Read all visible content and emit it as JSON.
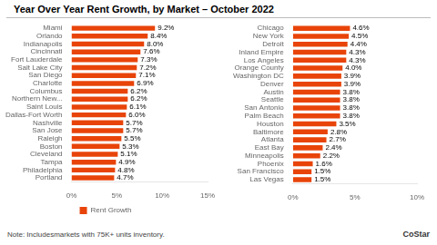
{
  "chart_data": [
    {
      "type": "bar",
      "orientation": "horizontal",
      "title": "Year Over Year Rent Growth, by Market –  October 2022",
      "annotations": [
        "Note: Includesmarkets with 75K+ units inventory.",
        "CoStar"
      ],
      "categories": [
        "Miami",
        "Orlando",
        "Indianapolis",
        "Cincinnati",
        "Fort Lauderdale",
        "Salt Lake City",
        "San Diego",
        "Charlotte",
        "Columbus",
        "Northern New...",
        "Saint Louis",
        "Dallas-Fort Worth",
        "Nashville",
        "San Jose",
        "Raleigh",
        "Boston",
        "Cleveland",
        "Tampa",
        "Philadelphia",
        "Portland"
      ],
      "series": [
        {
          "name": "Rent Growth",
          "color": "#E8440A",
          "values": [
            9.2,
            8.4,
            8.0,
            7.6,
            7.3,
            7.2,
            7.1,
            6.9,
            6.2,
            6.2,
            6.1,
            6.0,
            5.7,
            5.7,
            5.5,
            5.3,
            5.1,
            4.9,
            4.8,
            4.7
          ],
          "value_labels": [
            "9.2%",
            "8.4%",
            "8.0%",
            "7.6%",
            "7.3%",
            "7.2%",
            "7.1%",
            "6.9%",
            "6.2%",
            "6.2%",
            "6.1%",
            "6.0%",
            "5.7%",
            "5.7%",
            "5.5%",
            "5.3%",
            "5.1%",
            "4.9%",
            "4.8%",
            "4.7%"
          ]
        }
      ],
      "xlim": [
        0,
        15
      ],
      "xticks": [
        {
          "value": 0,
          "label": "0%"
        },
        {
          "value": 5,
          "label": "5%"
        },
        {
          "value": 10,
          "label": "10%"
        },
        {
          "value": 15,
          "label": "15%"
        }
      ],
      "data_labels": true,
      "grid": false,
      "legend": "bottom"
    },
    {
      "type": "bar",
      "orientation": "horizontal",
      "categories": [
        "Chicago",
        "New York",
        "Detroit",
        "Inland Empire",
        "Los Angeles",
        "Orange County",
        "Washington DC",
        "Denver",
        "Austin",
        "Seattle",
        "San Antonio",
        "Palm Beach",
        "Houston",
        "Baltimore",
        "Atlanta",
        "East Bay",
        "Minneapolis",
        "Phoenix",
        "San Francisco",
        "Las Vegas"
      ],
      "values": [
        4.6,
        4.5,
        4.4,
        4.3,
        4.3,
        4.0,
        3.9,
        3.9,
        3.8,
        3.8,
        3.8,
        3.8,
        3.5,
        2.8,
        2.7,
        2.4,
        2.2,
        1.6,
        1.5,
        1.5
      ],
      "value_labels": [
        "4.6%",
        "4.5%",
        "4.4%",
        "4.3%",
        "4.3%",
        "4.0%",
        "3.9%",
        "3.9%",
        "3.8%",
        "3.8%",
        "3.8%",
        "3.8%",
        "3.5%",
        "2.8%",
        "2.7%",
        "2.4%",
        "2.2%",
        "1.6%",
        "1.5%",
        "1.5%"
      ],
      "color": "#E8440A",
      "xlim": [
        0,
        10
      ],
      "xticks": [
        {
          "value": 0,
          "label": "0%"
        },
        {
          "value": 5,
          "label": "5%"
        },
        {
          "value": 10,
          "label": "10%"
        }
      ],
      "data_labels": true,
      "grid": false
    }
  ]
}
